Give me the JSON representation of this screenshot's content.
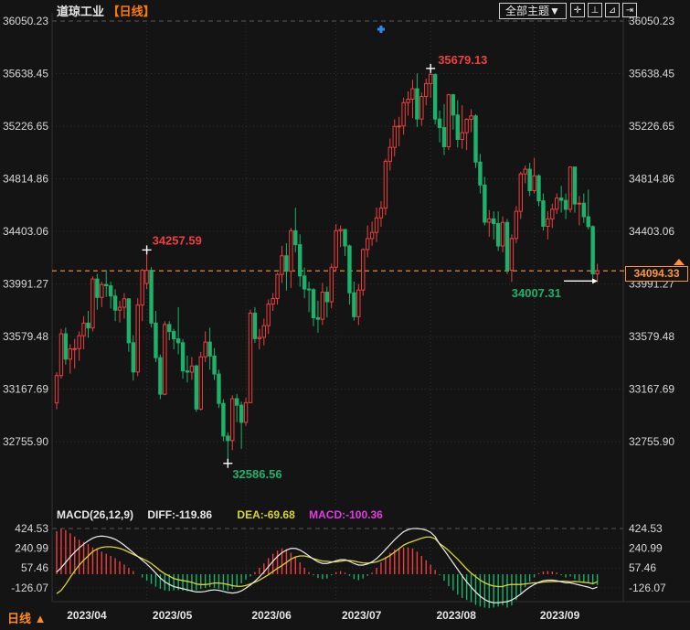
{
  "header": {
    "title": "道琼工业",
    "period_tag": "【日线】"
  },
  "toolbar": {
    "dropdown_label": "全部主题▼",
    "buttons": [
      {
        "name": "move-tool",
        "glyph": "✛"
      },
      {
        "name": "axis-zoom-in",
        "glyph": "⊥"
      },
      {
        "name": "axis-play",
        "glyph": "⊿"
      },
      {
        "name": "exit-pane",
        "glyph": "⇥"
      }
    ]
  },
  "macd_header": {
    "formula": "MACD(26,12,9)",
    "diff_label": "DIFF:-119.86",
    "dea_label": "DEA:-69.68",
    "macd_label": "MACD:-100.36"
  },
  "footer": {
    "period_label": "日线 ▲"
  },
  "price_box": {
    "label": "34094.33"
  },
  "colors": {
    "up": "#f03e3e",
    "down": "#1cb26b",
    "current": "#ff9532",
    "diff_line": "#ededed",
    "dea_line": "#d8d62c",
    "macd_text": "#e23ce2",
    "axis_text": "#d9d9d9",
    "grid": "#303030",
    "grid_bright": "#585858",
    "bg": "#141414",
    "marker": "#2d8ceb",
    "title_tag": "#ff7a00"
  },
  "chart_data": {
    "type": "candlestick",
    "title": "道琼工业 日线",
    "legend": "red = up (hollow), green = down (solid)",
    "y_ticks": [
      36050.23,
      35638.45,
      35226.65,
      34814.86,
      34403.06,
      33991.27,
      33579.48,
      33167.69,
      32755.9
    ],
    "x_labels": [
      "2023/04",
      "2023/05",
      "2023/06",
      "2023/07",
      "2023/08",
      "2023/09"
    ],
    "month_start_indices": [
      1,
      20,
      42,
      62,
      83,
      106
    ],
    "current_price": 34094.33,
    "event_marker_index": 72,
    "annotations": {
      "high1": {
        "value": "34257.59",
        "index": 20,
        "price": 34257.59
      },
      "high2": {
        "value": "35679.13",
        "index": 83,
        "price": 35679.13
      },
      "low1": {
        "value": "32586.56",
        "index": 38,
        "price": 32586.56
      },
      "low2": {
        "value": "34007.31",
        "index": 101,
        "price": 34007.31
      }
    },
    "candles": [
      [
        33060,
        33300,
        33010,
        33274
      ],
      [
        33274,
        33640,
        33250,
        33601
      ],
      [
        33601,
        33650,
        33360,
        33403
      ],
      [
        33403,
        33520,
        33290,
        33483
      ],
      [
        33483,
        33560,
        33330,
        33485
      ],
      [
        33485,
        33620,
        33390,
        33586
      ],
      [
        33586,
        33740,
        33480,
        33685
      ],
      [
        33685,
        33780,
        33570,
        33647
      ],
      [
        33647,
        34050,
        33620,
        34030
      ],
      [
        34030,
        34070,
        33790,
        33886
      ],
      [
        33886,
        34010,
        33810,
        33987
      ],
      [
        33987,
        34100,
        33890,
        33977
      ],
      [
        33977,
        34010,
        33800,
        33897
      ],
      [
        33897,
        33950,
        33700,
        33786
      ],
      [
        33786,
        33860,
        33690,
        33809
      ],
      [
        33809,
        33920,
        33720,
        33875
      ],
      [
        33875,
        33880,
        33460,
        33531
      ],
      [
        33531,
        33590,
        33235,
        33302
      ],
      [
        33302,
        33880,
        33270,
        33826
      ],
      [
        33826,
        34110,
        33700,
        34098
      ],
      [
        33995,
        34257.59,
        33950,
        34098
      ],
      [
        34098,
        34125,
        33650,
        33685
      ],
      [
        33685,
        33780,
        33380,
        33414
      ],
      [
        33414,
        33440,
        33090,
        33128
      ],
      [
        33128,
        33700,
        33120,
        33674
      ],
      [
        33674,
        33700,
        33550,
        33619
      ],
      [
        33619,
        33640,
        33480,
        33562
      ],
      [
        33562,
        33810,
        33440,
        33531
      ],
      [
        33531,
        33560,
        33250,
        33310
      ],
      [
        33310,
        33430,
        33220,
        33301
      ],
      [
        33301,
        33420,
        33240,
        33349
      ],
      [
        33349,
        33360,
        32990,
        33012
      ],
      [
        33012,
        33460,
        33000,
        33421
      ],
      [
        33421,
        33620,
        33380,
        33536
      ],
      [
        33536,
        33650,
        33320,
        33427
      ],
      [
        33427,
        33490,
        33240,
        33286
      ],
      [
        33286,
        33320,
        33020,
        33056
      ],
      [
        33056,
        33090,
        32760,
        32800
      ],
      [
        32800,
        32830,
        32586.56,
        32765
      ],
      [
        32765,
        33120,
        32690,
        33093
      ],
      [
        33093,
        33130,
        32910,
        33042
      ],
      [
        33042,
        33070,
        32700,
        32908
      ],
      [
        32908,
        33100,
        32880,
        33062
      ],
      [
        33062,
        33790,
        33060,
        33763
      ],
      [
        33763,
        33810,
        33530,
        33563
      ],
      [
        33563,
        33640,
        33480,
        33573
      ],
      [
        33573,
        33720,
        33510,
        33665
      ],
      [
        33665,
        33870,
        33600,
        33834
      ],
      [
        33834,
        33920,
        33780,
        33877
      ],
      [
        33877,
        34080,
        33830,
        34066
      ],
      [
        34066,
        34290,
        34000,
        34212
      ],
      [
        34212,
        34310,
        33940,
        34091
      ],
      [
        34091,
        34430,
        33960,
        34408
      ],
      [
        34408,
        34588,
        34240,
        34299
      ],
      [
        34299,
        34380,
        33970,
        34054
      ],
      [
        34054,
        34120,
        33880,
        33952
      ],
      [
        33952,
        34010,
        33770,
        33947
      ],
      [
        33947,
        33960,
        33660,
        33727
      ],
      [
        33727,
        33860,
        33610,
        33715
      ],
      [
        33715,
        34000,
        33670,
        33927
      ],
      [
        33927,
        33970,
        33730,
        33852
      ],
      [
        33852,
        34150,
        33800,
        34122
      ],
      [
        34122,
        34460,
        34090,
        34408
      ],
      [
        34408,
        34450,
        34280,
        34418
      ],
      [
        34418,
        34420,
        34210,
        34289
      ],
      [
        34289,
        34300,
        33830,
        33922
      ],
      [
        33922,
        34010,
        33705,
        33735
      ],
      [
        33735,
        33990,
        33670,
        33944
      ],
      [
        33944,
        34270,
        33900,
        34261
      ],
      [
        34261,
        34450,
        34200,
        34347
      ],
      [
        34347,
        34480,
        34290,
        34395
      ],
      [
        34395,
        34590,
        34320,
        34509
      ],
      [
        34509,
        34640,
        34440,
        34585
      ],
      [
        34585,
        34970,
        34530,
        34952
      ],
      [
        34952,
        35130,
        34880,
        35061
      ],
      [
        35061,
        35280,
        34990,
        35225
      ],
      [
        35225,
        35300,
        35070,
        35228
      ],
      [
        35228,
        35450,
        35160,
        35411
      ],
      [
        35411,
        35500,
        35310,
        35438
      ],
      [
        35438,
        35590,
        35290,
        35520
      ],
      [
        35520,
        35640,
        35220,
        35283
      ],
      [
        35283,
        35490,
        35230,
        35459
      ],
      [
        35459,
        35600,
        35390,
        35560
      ],
      [
        35560,
        35679.13,
        35450,
        35631
      ],
      [
        35631,
        35640,
        35240,
        35283
      ],
      [
        35283,
        35350,
        35100,
        35216
      ],
      [
        35216,
        35400,
        35000,
        35066
      ],
      [
        35066,
        35480,
        35040,
        35473
      ],
      [
        35473,
        35480,
        35200,
        35314
      ],
      [
        35314,
        35430,
        35060,
        35123
      ],
      [
        35123,
        35390,
        35050,
        35176
      ],
      [
        35176,
        35290,
        35040,
        35281
      ],
      [
        35281,
        35360,
        35180,
        35307
      ],
      [
        35307,
        35320,
        34900,
        34946
      ],
      [
        34946,
        35010,
        34700,
        34766
      ],
      [
        34766,
        34830,
        34450,
        34475
      ],
      [
        34475,
        34570,
        34360,
        34501
      ],
      [
        34501,
        34560,
        34340,
        34464
      ],
      [
        34464,
        34560,
        34250,
        34289
      ],
      [
        34289,
        34520,
        34240,
        34473
      ],
      [
        34473,
        34500,
        34070,
        34099
      ],
      [
        34099,
        34380,
        34007.31,
        34347
      ],
      [
        34347,
        34600,
        34310,
        34560
      ],
      [
        34560,
        34870,
        34500,
        34853
      ],
      [
        34853,
        34920,
        34780,
        34890
      ],
      [
        34890,
        34940,
        34680,
        34722
      ],
      [
        34722,
        34980,
        34700,
        34838
      ],
      [
        34838,
        34850,
        34600,
        34642
      ],
      [
        34642,
        34700,
        34410,
        34443
      ],
      [
        34443,
        34560,
        34340,
        34501
      ],
      [
        34501,
        34620,
        34430,
        34577
      ],
      [
        34577,
        34700,
        34540,
        34664
      ],
      [
        34664,
        34760,
        34550,
        34646
      ],
      [
        34646,
        34700,
        34500,
        34576
      ],
      [
        34576,
        34910,
        34550,
        34907
      ],
      [
        34907,
        34910,
        34550,
        34618
      ],
      [
        34618,
        34680,
        34450,
        34624
      ],
      [
        34624,
        34700,
        34470,
        34518
      ],
      [
        34518,
        34730,
        34420,
        34441
      ],
      [
        34441,
        34450,
        34035,
        34070
      ],
      [
        34070,
        34150,
        34005,
        34094.33
      ]
    ],
    "macd": {
      "y_ticks": [
        424.53,
        240.99,
        57.46,
        -126.07
      ],
      "diff": [
        20,
        60,
        110,
        160,
        205,
        245,
        280,
        310,
        335,
        350,
        355,
        350,
        340,
        325,
        300,
        270,
        235,
        200,
        165,
        130,
        95,
        55,
        10,
        -35,
        -70,
        -95,
        -115,
        -125,
        -135,
        -145,
        -155,
        -165,
        -165,
        -160,
        -150,
        -145,
        -150,
        -160,
        -170,
        -175,
        -170,
        -155,
        -130,
        -100,
        -65,
        -25,
        20,
        70,
        120,
        165,
        200,
        225,
        240,
        240,
        225,
        200,
        170,
        140,
        115,
        100,
        100,
        110,
        125,
        135,
        135,
        120,
        100,
        85,
        85,
        95,
        115,
        145,
        185,
        230,
        275,
        320,
        360,
        395,
        415,
        424.53,
        425,
        420,
        410,
        390,
        350,
        280,
        225,
        165,
        105,
        45,
        -15,
        -70,
        -120,
        -165,
        -205,
        -235,
        -255,
        -265,
        -265,
        -260,
        -255,
        -240,
        -215,
        -185,
        -150,
        -120,
        -95,
        -75,
        -60,
        -55,
        -55,
        -60,
        -70,
        -80,
        -80,
        -90,
        -100,
        -110,
        -120,
        -135,
        -119.86
      ],
      "hist": [
        400,
        420,
        410,
        380,
        350,
        320,
        300,
        280,
        250,
        230,
        210,
        190,
        170,
        150,
        120,
        90,
        60,
        30,
        0,
        -30,
        -60,
        -90,
        -115,
        -135,
        -150,
        -155,
        -150,
        -148,
        -152,
        -158,
        -160,
        -150,
        -138,
        -128,
        -120,
        -126,
        -136,
        -146,
        -150,
        -138,
        -115,
        -85,
        -50,
        -20,
        20,
        60,
        100,
        150,
        190,
        220,
        240,
        230,
        200,
        160,
        110,
        60,
        20,
        -10,
        -35,
        -45,
        -40,
        -10,
        20,
        30,
        15,
        -15,
        -45,
        -55,
        -40,
        -15,
        15,
        60,
        110,
        160,
        200,
        230,
        245,
        250,
        250,
        240,
        210,
        170,
        130,
        90,
        40,
        -10,
        -60,
        -110,
        -150,
        -190,
        -220,
        -240,
        -260,
        -285,
        -300,
        -310,
        -315,
        -310,
        -300,
        -290,
        -310,
        -290,
        -240,
        -180,
        -120,
        -70,
        -30,
        10,
        25,
        30,
        25,
        15,
        -10,
        -30,
        -20,
        -45,
        -60,
        -70,
        -80,
        -95,
        -100.36
      ]
    }
  }
}
